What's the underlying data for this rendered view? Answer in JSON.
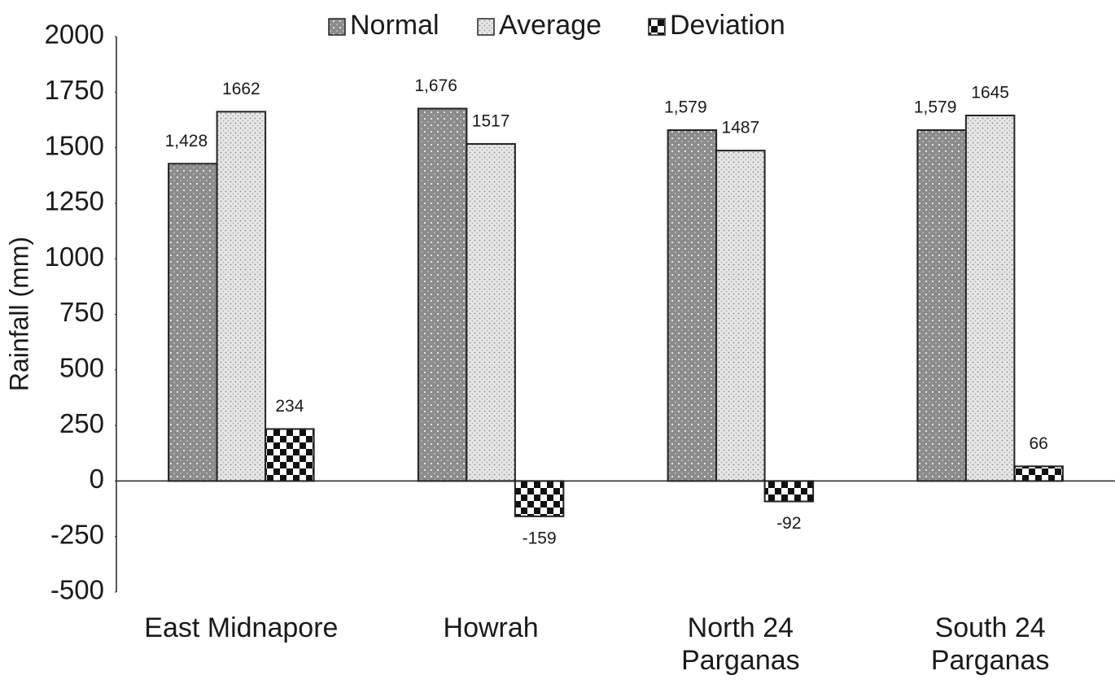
{
  "chart_data": {
    "type": "bar",
    "y_label": "Rainfall (mm)",
    "categories": [
      "East Midnapore",
      "Howrah",
      "North 24 Parganas",
      "South 24 Parganas"
    ],
    "series": [
      {
        "name": "Normal",
        "color": "#8c8c8c",
        "values": [
          1428,
          1676,
          1579,
          1579
        ],
        "value_labels": [
          "1,428",
          "1,676",
          "1,579",
          "1,579"
        ]
      },
      {
        "name": "Average",
        "color": "#e6e6e6",
        "values": [
          1662,
          1517,
          1487,
          1645
        ]
      },
      {
        "name": "Deviation",
        "color": "#111111",
        "values": [
          234,
          -159,
          -92,
          66
        ]
      }
    ],
    "ylim": [
      -500,
      2000
    ],
    "yticks": [
      -500,
      -250,
      0,
      250,
      500,
      750,
      1000,
      1250,
      1500,
      1750,
      2000
    ],
    "legend": "top",
    "grid": false
  }
}
